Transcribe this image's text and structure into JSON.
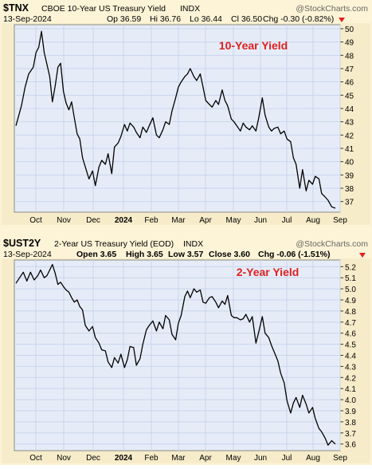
{
  "colors": {
    "frame": "#f7ecc9",
    "plot_bg": "#e6ecf7",
    "grid": "#c9d5ec",
    "line": "#000000",
    "title_accent": "#e02020",
    "text": "#000000"
  },
  "x_labels": [
    "Oct",
    "Nov",
    "Dec",
    "2024",
    "Feb",
    "Mar",
    "Apr",
    "May",
    "Jun",
    "Jul",
    "Aug",
    "Sep"
  ],
  "panels": [
    {
      "symbol": "$TNX",
      "name": "CBOE 10-Year US Treasury Yield",
      "exchange": "INDX",
      "watermark": "@StockCharts.com",
      "date": "13-Sep-2024",
      "quote": {
        "open": "Op 36.59",
        "high": "Hi 36.76",
        "low": "Lo 36.44",
        "close": "Cl 36.50",
        "chg": "Chg -0.30 (-0.82%)"
      },
      "chart_title": "10-Year Yield"
    },
    {
      "symbol": "$UST2Y",
      "name": "2-Year US Treasury Yield (EOD)",
      "exchange": "INDX",
      "watermark": "@StockCharts.com",
      "date": "13-Sep-2024",
      "quote": {
        "open": "Open 3.65",
        "high": "High 3.65",
        "low": "Low 3.57",
        "close": "Close 3.60",
        "chg": "Chg -0.06 (-1.51%)"
      },
      "chart_title": "2-Year Yield"
    }
  ],
  "chart_data": [
    {
      "type": "line",
      "title": "10-Year Yield",
      "series": [
        {
          "values": [
            [
              0,
              42.7
            ],
            [
              6,
              44.2
            ],
            [
              10,
              45.6
            ],
            [
              14,
              46.6
            ],
            [
              19,
              47.1
            ],
            [
              22,
              48.2
            ],
            [
              25,
              48.6
            ],
            [
              28,
              49.8
            ],
            [
              31,
              48.2
            ],
            [
              34,
              47.3
            ],
            [
              37,
              46.4
            ],
            [
              40,
              44.5
            ],
            [
              43,
              45.7
            ],
            [
              46,
              47.1
            ],
            [
              49,
              47.4
            ],
            [
              52,
              45.3
            ],
            [
              55,
              44.4
            ],
            [
              58,
              43.9
            ],
            [
              61,
              44.5
            ],
            [
              64,
              43.3
            ],
            [
              67,
              42.1
            ],
            [
              70,
              41.7
            ],
            [
              73,
              40.3
            ],
            [
              76,
              39.6
            ],
            [
              80,
              38.7
            ],
            [
              84,
              39.3
            ],
            [
              87,
              38.2
            ],
            [
              91,
              39.6
            ],
            [
              94,
              40.1
            ],
            [
              98,
              39.8
            ],
            [
              101,
              40.6
            ],
            [
              105,
              39.1
            ],
            [
              108,
              41.1
            ],
            [
              112,
              41.4
            ],
            [
              115,
              41.9
            ],
            [
              119,
              42.8
            ],
            [
              122,
              42.3
            ],
            [
              125,
              42.9
            ],
            [
              129,
              42.6
            ],
            [
              132,
              42.2
            ],
            [
              136,
              41.8
            ],
            [
              139,
              42.6
            ],
            [
              143,
              42.2
            ],
            [
              146,
              42.7
            ],
            [
              150,
              43.3
            ],
            [
              154,
              42.0
            ],
            [
              157,
              41.8
            ],
            [
              161,
              42.4
            ],
            [
              164,
              43.0
            ],
            [
              168,
              42.8
            ],
            [
              171,
              43.8
            ],
            [
              175,
              44.8
            ],
            [
              178,
              45.6
            ],
            [
              181,
              46.0
            ],
            [
              185,
              46.4
            ],
            [
              188,
              46.6
            ],
            [
              191,
              47.0
            ],
            [
              195,
              46.4
            ],
            [
              198,
              46.1
            ],
            [
              202,
              46.6
            ],
            [
              205,
              45.6
            ],
            [
              208,
              44.6
            ],
            [
              212,
              44.3
            ],
            [
              215,
              44.1
            ],
            [
              219,
              44.6
            ],
            [
              222,
              44.3
            ],
            [
              226,
              45.4
            ],
            [
              229,
              44.6
            ],
            [
              232,
              44.2
            ],
            [
              236,
              43.2
            ],
            [
              239,
              43.0
            ],
            [
              242,
              42.7
            ],
            [
              246,
              42.3
            ],
            [
              249,
              42.9
            ],
            [
              252,
              42.6
            ],
            [
              256,
              42.4
            ],
            [
              259,
              42.7
            ],
            [
              263,
              42.3
            ],
            [
              266,
              43.3
            ],
            [
              270,
              44.8
            ],
            [
              273,
              43.5
            ],
            [
              277,
              42.6
            ],
            [
              280,
              42.3
            ],
            [
              283,
              42.5
            ],
            [
              287,
              42.6
            ],
            [
              290,
              42.1
            ],
            [
              294,
              42.3
            ],
            [
              297,
              41.7
            ],
            [
              301,
              41.5
            ],
            [
              304,
              40.3
            ],
            [
              307,
              39.8
            ],
            [
              311,
              38.0
            ],
            [
              314,
              39.4
            ],
            [
              318,
              37.8
            ],
            [
              321,
              38.6
            ],
            [
              325,
              38.3
            ],
            [
              328,
              38.9
            ],
            [
              332,
              38.7
            ],
            [
              335,
              37.6
            ],
            [
              338,
              37.4
            ],
            [
              342,
              37.1
            ],
            [
              346,
              36.6
            ],
            [
              350,
              36.5
            ]
          ]
        }
      ],
      "x_tick_labels": [
        "Oct",
        "Nov",
        "Dec",
        "2024",
        "Feb",
        "Mar",
        "Apr",
        "May",
        "Jun",
        "Jul",
        "Aug",
        "Sep"
      ],
      "y_ticks": [
        37,
        38,
        39,
        40,
        41,
        42,
        43,
        44,
        45,
        46,
        47,
        48,
        49,
        50
      ],
      "ylim": [
        36.2,
        50.3
      ],
      "grid": true
    },
    {
      "type": "line",
      "title": "2-Year Yield",
      "series": [
        {
          "values": [
            [
              0,
              5.05
            ],
            [
              4,
              5.1
            ],
            [
              8,
              5.15
            ],
            [
              12,
              5.07
            ],
            [
              16,
              5.15
            ],
            [
              20,
              5.08
            ],
            [
              24,
              5.12
            ],
            [
              27,
              5.17
            ],
            [
              31,
              5.1
            ],
            [
              34,
              5.12
            ],
            [
              37,
              5.17
            ],
            [
              40,
              5.22
            ],
            [
              43,
              5.14
            ],
            [
              46,
              5.04
            ],
            [
              49,
              5.06
            ],
            [
              52,
              5.02
            ],
            [
              55,
              4.99
            ],
            [
              58,
              4.97
            ],
            [
              61,
              4.92
            ],
            [
              64,
              4.88
            ],
            [
              67,
              4.9
            ],
            [
              70,
              4.84
            ],
            [
              73,
              4.81
            ],
            [
              76,
              4.67
            ],
            [
              80,
              4.62
            ],
            [
              84,
              4.66
            ],
            [
              87,
              4.56
            ],
            [
              91,
              4.51
            ],
            [
              94,
              4.45
            ],
            [
              98,
              4.44
            ],
            [
              101,
              4.34
            ],
            [
              105,
              4.29
            ],
            [
              108,
              4.38
            ],
            [
              112,
              4.33
            ],
            [
              115,
              4.41
            ],
            [
              119,
              4.29
            ],
            [
              122,
              4.36
            ],
            [
              125,
              4.48
            ],
            [
              129,
              4.47
            ],
            [
              132,
              4.31
            ],
            [
              136,
              4.37
            ],
            [
              139,
              4.5
            ],
            [
              143,
              4.63
            ],
            [
              146,
              4.67
            ],
            [
              150,
              4.71
            ],
            [
              154,
              4.62
            ],
            [
              157,
              4.7
            ],
            [
              161,
              4.64
            ],
            [
              164,
              4.76
            ],
            [
              168,
              4.72
            ],
            [
              171,
              4.59
            ],
            [
              175,
              4.54
            ],
            [
              178,
              4.69
            ],
            [
              181,
              4.76
            ],
            [
              185,
              4.93
            ],
            [
              188,
              4.98
            ],
            [
              191,
              4.92
            ],
            [
              195,
              5.0
            ],
            [
              198,
              4.97
            ],
            [
              202,
              4.99
            ],
            [
              205,
              4.88
            ],
            [
              208,
              4.87
            ],
            [
              212,
              4.92
            ],
            [
              215,
              4.93
            ],
            [
              219,
              4.88
            ],
            [
              222,
              4.83
            ],
            [
              226,
              4.89
            ],
            [
              229,
              4.86
            ],
            [
              232,
              4.94
            ],
            [
              236,
              4.76
            ],
            [
              239,
              4.74
            ],
            [
              242,
              4.74
            ],
            [
              246,
              4.72
            ],
            [
              249,
              4.73
            ],
            [
              252,
              4.77
            ],
            [
              256,
              4.7
            ],
            [
              259,
              4.75
            ],
            [
              263,
              4.51
            ],
            [
              266,
              4.61
            ],
            [
              270,
              4.75
            ],
            [
              273,
              4.6
            ],
            [
              277,
              4.56
            ],
            [
              280,
              4.49
            ],
            [
              283,
              4.43
            ],
            [
              287,
              4.35
            ],
            [
              290,
              4.24
            ],
            [
              294,
              4.15
            ],
            [
              297,
              3.99
            ],
            [
              301,
              3.88
            ],
            [
              304,
              3.97
            ],
            [
              307,
              4.02
            ],
            [
              311,
              3.93
            ],
            [
              314,
              4.04
            ],
            [
              318,
              3.96
            ],
            [
              321,
              3.88
            ],
            [
              325,
              3.93
            ],
            [
              328,
              3.83
            ],
            [
              332,
              3.74
            ],
            [
              335,
              3.71
            ],
            [
              339,
              3.65
            ],
            [
              342,
              3.59
            ],
            [
              346,
              3.63
            ],
            [
              350,
              3.6
            ]
          ]
        }
      ],
      "x_tick_labels": [
        "Oct",
        "Nov",
        "Dec",
        "2024",
        "Feb",
        "Mar",
        "Apr",
        "May",
        "Jun",
        "Jul",
        "Aug",
        "Sep"
      ],
      "y_ticks": [
        3.6,
        3.7,
        3.8,
        3.9,
        4.0,
        4.1,
        4.2,
        4.3,
        4.4,
        4.5,
        4.6,
        4.7,
        4.8,
        4.9,
        5.0,
        5.1,
        5.2
      ],
      "ylim": [
        3.54,
        5.26
      ],
      "grid": true
    }
  ]
}
